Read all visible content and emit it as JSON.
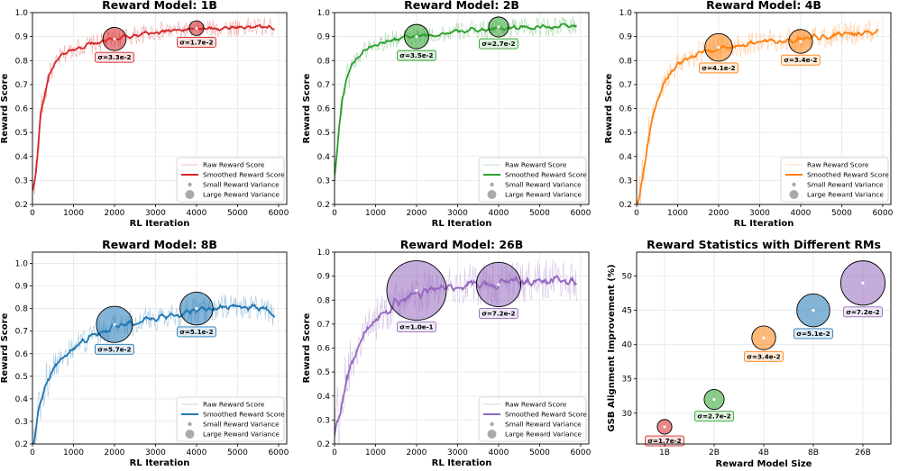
{
  "figure": {
    "xlabel": "RL Iteration",
    "ylabel": "Reward Score",
    "legend": {
      "raw": "Raw Reward Score",
      "smooth": "Smoothed Reward Score",
      "small": "Small Reward Variance",
      "large": "Large Reward Variance"
    }
  },
  "chart_data": [
    {
      "type": "line",
      "title": "Reward Model: 1B",
      "color": "#d62728",
      "xlim": [
        0,
        6200
      ],
      "ylim": [
        0.2,
        1.0
      ],
      "xticks": [
        0,
        1000,
        2000,
        3000,
        4000,
        5000,
        6000
      ],
      "yticks": [
        0.2,
        0.3,
        0.4,
        0.5,
        0.6,
        0.7,
        0.8,
        0.9,
        1.0
      ],
      "legend_position": "lower-right",
      "smoothed_key_points": [
        [
          0,
          0.25
        ],
        [
          100,
          0.35
        ],
        [
          200,
          0.58
        ],
        [
          400,
          0.74
        ],
        [
          700,
          0.82
        ],
        [
          1000,
          0.85
        ],
        [
          1500,
          0.87
        ],
        [
          2000,
          0.89
        ],
        [
          3000,
          0.92
        ],
        [
          4000,
          0.93
        ],
        [
          5000,
          0.94
        ],
        [
          5900,
          0.94
        ]
      ],
      "raw_noise": 0.04,
      "variance_markers": [
        {
          "x": 2000,
          "y": 0.89,
          "sigma": 0.033,
          "label": "σ=3.3e-2"
        },
        {
          "x": 4000,
          "y": 0.935,
          "sigma": 0.017,
          "label": "σ=1.7e-2"
        }
      ]
    },
    {
      "type": "line",
      "title": "Reward Model: 2B",
      "color": "#2ca02c",
      "xlim": [
        0,
        6200
      ],
      "ylim": [
        0.2,
        1.0
      ],
      "xticks": [
        0,
        1000,
        2000,
        3000,
        4000,
        5000,
        6000
      ],
      "yticks": [
        0.2,
        0.3,
        0.4,
        0.5,
        0.6,
        0.7,
        0.8,
        0.9,
        1.0
      ],
      "legend_position": "lower-right",
      "smoothed_key_points": [
        [
          0,
          0.32
        ],
        [
          100,
          0.5
        ],
        [
          200,
          0.66
        ],
        [
          400,
          0.78
        ],
        [
          700,
          0.84
        ],
        [
          1000,
          0.87
        ],
        [
          1500,
          0.89
        ],
        [
          2000,
          0.9
        ],
        [
          3000,
          0.92
        ],
        [
          4000,
          0.935
        ],
        [
          5000,
          0.94
        ],
        [
          5900,
          0.945
        ]
      ],
      "raw_noise": 0.04,
      "variance_markers": [
        {
          "x": 2000,
          "y": 0.9,
          "sigma": 0.035,
          "label": "σ=3.5e-2"
        },
        {
          "x": 4000,
          "y": 0.94,
          "sigma": 0.027,
          "label": "σ=2.7e-2"
        }
      ]
    },
    {
      "type": "line",
      "title": "Reward Model: 4B",
      "color": "#ff7f0e",
      "xlim": [
        0,
        6200
      ],
      "ylim": [
        0.2,
        1.0
      ],
      "xticks": [
        0,
        1000,
        2000,
        3000,
        4000,
        5000,
        6000
      ],
      "yticks": [
        0.2,
        0.3,
        0.4,
        0.5,
        0.6,
        0.7,
        0.8,
        0.9,
        1.0
      ],
      "legend_position": "lower-right",
      "smoothed_key_points": [
        [
          0,
          0.17
        ],
        [
          100,
          0.25
        ],
        [
          200,
          0.38
        ],
        [
          400,
          0.58
        ],
        [
          700,
          0.72
        ],
        [
          1000,
          0.79
        ],
        [
          1500,
          0.83
        ],
        [
          2000,
          0.85
        ],
        [
          3000,
          0.88
        ],
        [
          4000,
          0.89
        ],
        [
          5000,
          0.91
        ],
        [
          5900,
          0.92
        ]
      ],
      "raw_noise": 0.05,
      "variance_markers": [
        {
          "x": 2000,
          "y": 0.855,
          "sigma": 0.041,
          "label": "σ=4.1e-2"
        },
        {
          "x": 4000,
          "y": 0.88,
          "sigma": 0.034,
          "label": "σ=3.4e-2"
        }
      ]
    },
    {
      "type": "line",
      "title": "Reward Model: 8B",
      "color": "#1f77b4",
      "xlim": [
        0,
        6200
      ],
      "ylim": [
        0.2,
        1.05
      ],
      "xticks": [
        0,
        1000,
        2000,
        3000,
        4000,
        5000,
        6000
      ],
      "yticks": [
        0.2,
        0.3,
        0.4,
        0.5,
        0.6,
        0.7,
        0.8,
        0.9,
        1.0
      ],
      "legend_position": "lower-right",
      "smoothed_key_points": [
        [
          0,
          0.18
        ],
        [
          100,
          0.3
        ],
        [
          300,
          0.46
        ],
        [
          600,
          0.56
        ],
        [
          1000,
          0.62
        ],
        [
          1500,
          0.68
        ],
        [
          2000,
          0.72
        ],
        [
          3000,
          0.76
        ],
        [
          4000,
          0.79
        ],
        [
          5000,
          0.81
        ],
        [
          5700,
          0.8
        ],
        [
          5900,
          0.75
        ]
      ],
      "raw_noise": 0.06,
      "variance_markers": [
        {
          "x": 2000,
          "y": 0.73,
          "sigma": 0.057,
          "label": "σ=5.7e-2"
        },
        {
          "x": 4000,
          "y": 0.8,
          "sigma": 0.051,
          "label": "σ=5.1e-2"
        }
      ]
    },
    {
      "type": "line",
      "title": "Reward Model: 26B",
      "color": "#9467bd",
      "xlim": [
        0,
        6200
      ],
      "ylim": [
        0.2,
        1.0
      ],
      "xticks": [
        0,
        1000,
        2000,
        3000,
        4000,
        5000,
        6000
      ],
      "yticks": [
        0.2,
        0.3,
        0.4,
        0.5,
        0.6,
        0.7,
        0.8,
        0.9,
        1.0
      ],
      "legend_position": "lower-right",
      "smoothed_key_points": [
        [
          0,
          0.2
        ],
        [
          100,
          0.3
        ],
        [
          300,
          0.48
        ],
        [
          600,
          0.62
        ],
        [
          1000,
          0.72
        ],
        [
          1500,
          0.79
        ],
        [
          2000,
          0.83
        ],
        [
          3000,
          0.86
        ],
        [
          4000,
          0.87
        ],
        [
          5000,
          0.88
        ],
        [
          5900,
          0.88
        ]
      ],
      "raw_noise": 0.09,
      "variance_markers": [
        {
          "x": 2000,
          "y": 0.84,
          "sigma": 0.1,
          "label": "σ=1.0e-1"
        },
        {
          "x": 4000,
          "y": 0.865,
          "sigma": 0.072,
          "label": "σ=7.2e-2"
        }
      ]
    },
    {
      "type": "scatter",
      "title": "Reward Statistics with Different RMs",
      "xlabel": "Reward Model Size",
      "ylabel": "GSB Alignment Improvement (%)",
      "categories": [
        "1B",
        "2B",
        "4B",
        "8B",
        "26B"
      ],
      "values": [
        28,
        32,
        41,
        45,
        49
      ],
      "sigmas": [
        0.017,
        0.027,
        0.034,
        0.051,
        0.072
      ],
      "labels": [
        "σ=1.7e-2",
        "σ=2.7e-2",
        "σ=3.4e-2",
        "σ=5.1e-2",
        "σ=7.2e-2"
      ],
      "colors": [
        "#d62728",
        "#2ca02c",
        "#ff7f0e",
        "#1f77b4",
        "#9467bd"
      ],
      "ylim": [
        25.5,
        53.5
      ],
      "yticks": [
        30,
        35,
        40,
        45,
        50
      ],
      "grid": true
    }
  ]
}
